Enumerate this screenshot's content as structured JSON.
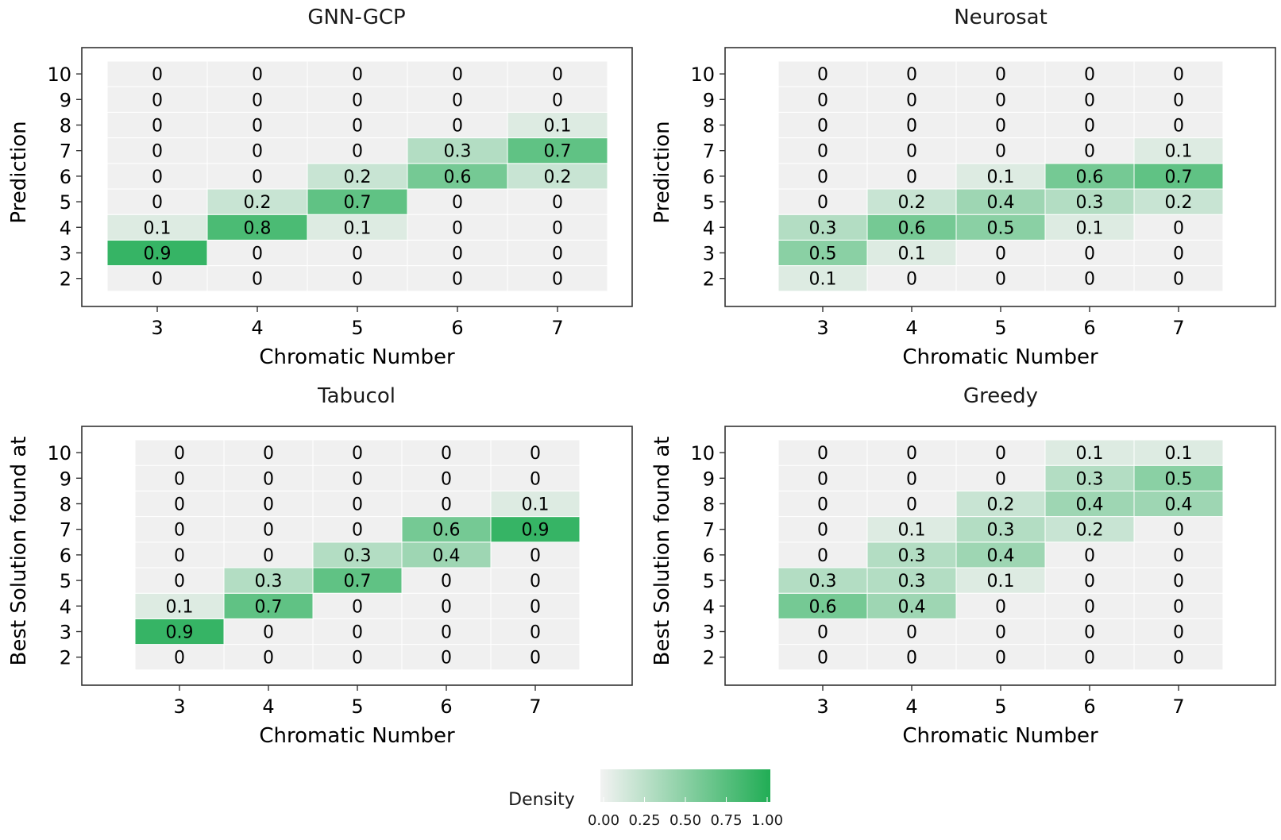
{
  "chart_data": [
    {
      "type": "heatmap",
      "title": "GNN-GCP",
      "xlabel": "Chromatic Number",
      "ylabel": "Prediction",
      "x_categories": [
        "3",
        "4",
        "5",
        "6",
        "7"
      ],
      "y_categories": [
        "2",
        "3",
        "4",
        "5",
        "6",
        "7",
        "8",
        "9",
        "10"
      ],
      "values": [
        [
          0,
          0,
          0,
          0,
          0
        ],
        [
          0.9,
          0,
          0,
          0,
          0
        ],
        [
          0.1,
          0.8,
          0.1,
          0,
          0
        ],
        [
          0,
          0.2,
          0.7,
          0,
          0
        ],
        [
          0,
          0,
          0.2,
          0.6,
          0.2
        ],
        [
          0,
          0,
          0,
          0.3,
          0.7
        ],
        [
          0,
          0,
          0,
          0,
          0.1
        ],
        [
          0,
          0,
          0,
          0,
          0
        ],
        [
          0,
          0,
          0,
          0,
          0
        ]
      ]
    },
    {
      "type": "heatmap",
      "title": "Neurosat",
      "xlabel": "Chromatic Number",
      "ylabel": "Prediction",
      "x_categories": [
        "3",
        "4",
        "5",
        "6",
        "7"
      ],
      "y_categories": [
        "2",
        "3",
        "4",
        "5",
        "6",
        "7",
        "8",
        "9",
        "10"
      ],
      "values": [
        [
          0.1,
          0,
          0,
          0,
          0
        ],
        [
          0.5,
          0.1,
          0,
          0,
          0
        ],
        [
          0.3,
          0.6,
          0.5,
          0.1,
          0
        ],
        [
          0,
          0.2,
          0.4,
          0.3,
          0.2
        ],
        [
          0,
          0,
          0.1,
          0.6,
          0.7
        ],
        [
          0,
          0,
          0,
          0,
          0.1
        ],
        [
          0,
          0,
          0,
          0,
          0
        ],
        [
          0,
          0,
          0,
          0,
          0
        ],
        [
          0,
          0,
          0,
          0,
          0
        ]
      ]
    },
    {
      "type": "heatmap",
      "title": "Tabucol",
      "xlabel": "Chromatic Number",
      "ylabel": "Best Solution found at",
      "x_categories": [
        "3",
        "4",
        "5",
        "6",
        "7"
      ],
      "y_categories": [
        "2",
        "3",
        "4",
        "5",
        "6",
        "7",
        "8",
        "9",
        "10"
      ],
      "values": [
        [
          0,
          0,
          0,
          0,
          0
        ],
        [
          0.9,
          0,
          0,
          0,
          0
        ],
        [
          0.1,
          0.7,
          0,
          0,
          0
        ],
        [
          0,
          0.3,
          0.7,
          0,
          0
        ],
        [
          0,
          0,
          0.3,
          0.4,
          0
        ],
        [
          0,
          0,
          0,
          0.6,
          0.9
        ],
        [
          0,
          0,
          0,
          0,
          0.1
        ],
        [
          0,
          0,
          0,
          0,
          0
        ],
        [
          0,
          0,
          0,
          0,
          0
        ]
      ]
    },
    {
      "type": "heatmap",
      "title": "Greedy",
      "xlabel": "Chromatic Number",
      "ylabel": "Best Solution found at",
      "x_categories": [
        "3",
        "4",
        "5",
        "6",
        "7"
      ],
      "y_categories": [
        "2",
        "3",
        "4",
        "5",
        "6",
        "7",
        "8",
        "9",
        "10"
      ],
      "values": [
        [
          0,
          0,
          0,
          0,
          0
        ],
        [
          0,
          0,
          0,
          0,
          0
        ],
        [
          0.6,
          0.4,
          0,
          0,
          0
        ],
        [
          0.3,
          0.3,
          0.1,
          0,
          0
        ],
        [
          0,
          0.3,
          0.4,
          0,
          0
        ],
        [
          0,
          0.1,
          0.3,
          0.2,
          0
        ],
        [
          0,
          0,
          0.2,
          0.4,
          0.4
        ],
        [
          0,
          0,
          0,
          0.3,
          0.5
        ],
        [
          0,
          0,
          0,
          0.1,
          0.1
        ]
      ]
    }
  ],
  "legend": {
    "title": "Density",
    "ticks": [
      "0.00",
      "0.25",
      "0.50",
      "0.75",
      "1.00"
    ],
    "color_low": "#f2f2f2",
    "color_high": "#21ad55"
  },
  "colors": {
    "empty_cell": "#f0f0f0",
    "cell_border": "#ffffff",
    "panel_border": "#333333"
  }
}
